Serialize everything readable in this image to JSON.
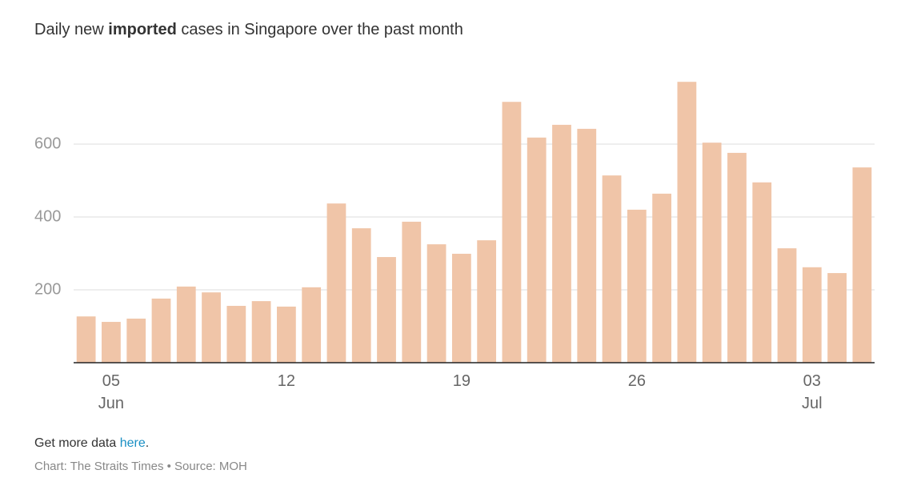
{
  "chart_data": {
    "type": "bar",
    "title": [
      "Daily new ",
      "imported",
      " cases in Singapore over the past month"
    ],
    "categories": [
      null,
      "05\nJun",
      null,
      null,
      null,
      null,
      null,
      null,
      "12",
      null,
      null,
      null,
      null,
      null,
      null,
      "19",
      null,
      null,
      null,
      null,
      null,
      null,
      "26",
      null,
      null,
      null,
      null,
      null,
      null,
      "03\nJul",
      null,
      null
    ],
    "values": [
      127,
      112,
      121,
      176,
      209,
      193,
      156,
      169,
      154,
      207,
      437,
      369,
      290,
      387,
      325,
      299,
      336,
      716,
      618,
      653,
      642,
      514,
      420,
      464,
      771,
      604,
      576,
      495,
      314,
      262,
      246,
      536
    ],
    "color": "#f0c5a8",
    "ylim": [
      0,
      800
    ],
    "yticks": [
      200,
      400,
      600
    ],
    "grid": true,
    "footer": {
      "more": [
        "Get more data ",
        "here",
        "."
      ],
      "source": "Chart: The Straits Times • Source: MOH"
    }
  }
}
